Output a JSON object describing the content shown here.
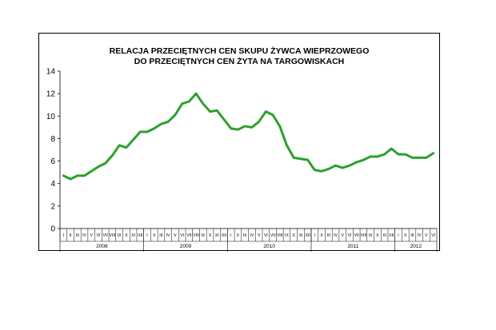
{
  "chart_data": {
    "type": "line",
    "title_line1": "RELACJA PRZECIĘTNYCH CEN SKUPU ŻYWCA WIEPRZOWEGO",
    "title_line2": "DO PRZECIĘTNYCH CEN ŻYTA NA TARGOWISKACH",
    "xlabel": "",
    "ylabel": "",
    "ylim": [
      0,
      14
    ],
    "yticks": [
      "0",
      "2",
      "4",
      "6",
      "8",
      "10",
      "12",
      "14"
    ],
    "grid": false,
    "legend": "none",
    "line_color": "#2ca02c",
    "month_labels": [
      "I",
      "II",
      "III",
      "IV",
      "V",
      "VI",
      "VII",
      "VIII",
      "IX",
      "X",
      "XI",
      "XII"
    ],
    "year_groups": [
      {
        "year": "2008",
        "months": 12
      },
      {
        "year": "2009",
        "months": 12
      },
      {
        "year": "2010",
        "months": 12
      },
      {
        "year": "2011",
        "months": 12
      },
      {
        "year": "2012",
        "months": 6
      }
    ],
    "series": [
      {
        "values": [
          4.7,
          4.4,
          4.7,
          4.7,
          5.1,
          5.5,
          5.8,
          6.5,
          7.4,
          7.2,
          7.9,
          8.6,
          8.6,
          8.9,
          9.3,
          9.5,
          10.1,
          11.1,
          11.3,
          12.0,
          11.1,
          10.4,
          10.5,
          9.7,
          8.9,
          8.8,
          9.1,
          9.0,
          9.5,
          10.4,
          10.1,
          9.1,
          7.4,
          6.3,
          6.2,
          6.1,
          5.2,
          5.1,
          5.3,
          5.6,
          5.4,
          5.6,
          5.9,
          6.1,
          6.4,
          6.4,
          6.6,
          7.1,
          6.6,
          6.6,
          6.3,
          6.3,
          6.3,
          6.7
        ]
      }
    ]
  }
}
